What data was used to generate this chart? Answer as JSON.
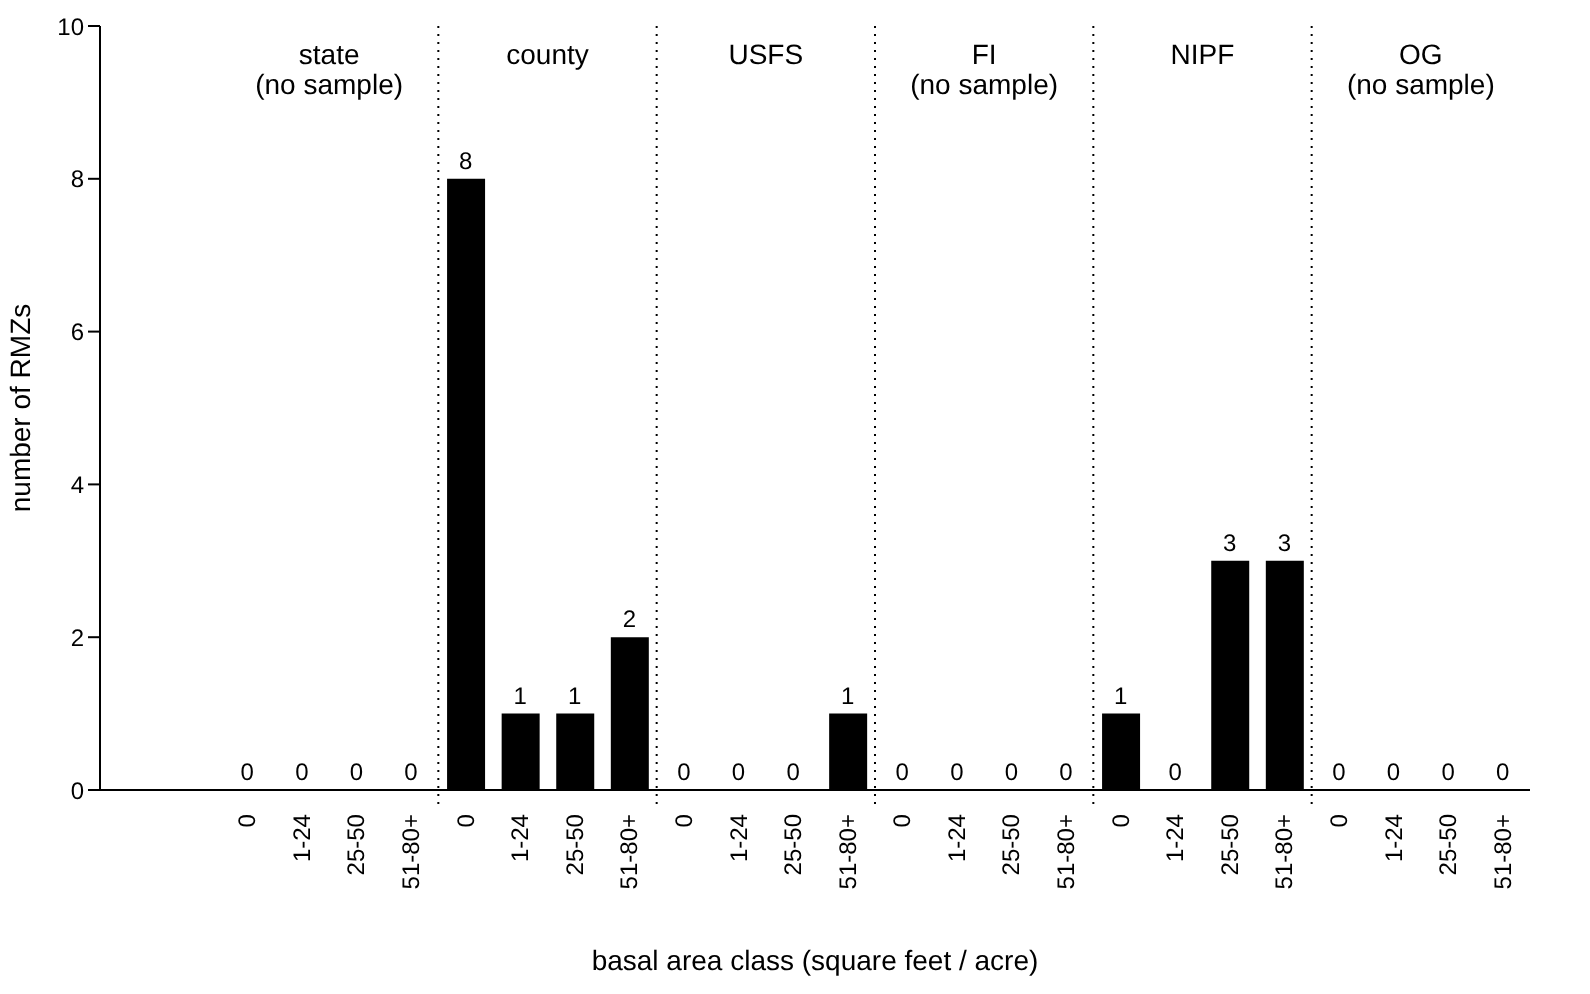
{
  "chart_data": {
    "type": "bar",
    "xlabel": "basal area class (square feet / acre)",
    "ylabel": "number of RMZs",
    "categories": [
      "0",
      "1-24",
      "25-50",
      "51-80+",
      "0",
      "1-24",
      "25-50",
      "51-80+",
      "0",
      "1-24",
      "25-50",
      "51-80+",
      "0",
      "1-24",
      "25-50",
      "51-80+",
      "0",
      "1-24",
      "25-50",
      "51-80+",
      "0",
      "1-24",
      "25-50",
      "51-80+"
    ],
    "values": [
      0,
      0,
      0,
      0,
      8,
      1,
      1,
      2,
      0,
      0,
      0,
      1,
      0,
      0,
      0,
      0,
      1,
      0,
      3,
      3,
      0,
      0,
      0,
      0
    ],
    "color": "#000000",
    "ylim": [
      0,
      10
    ],
    "yticks": [
      0,
      2,
      4,
      6,
      8,
      10
    ],
    "grid": false,
    "legend": false,
    "data_labels": true,
    "annotations": [
      "state\n(no sample)",
      "county",
      "USFS",
      "FI\n(no sample)",
      "NIPF",
      "OG\n(no sample)"
    ]
  }
}
